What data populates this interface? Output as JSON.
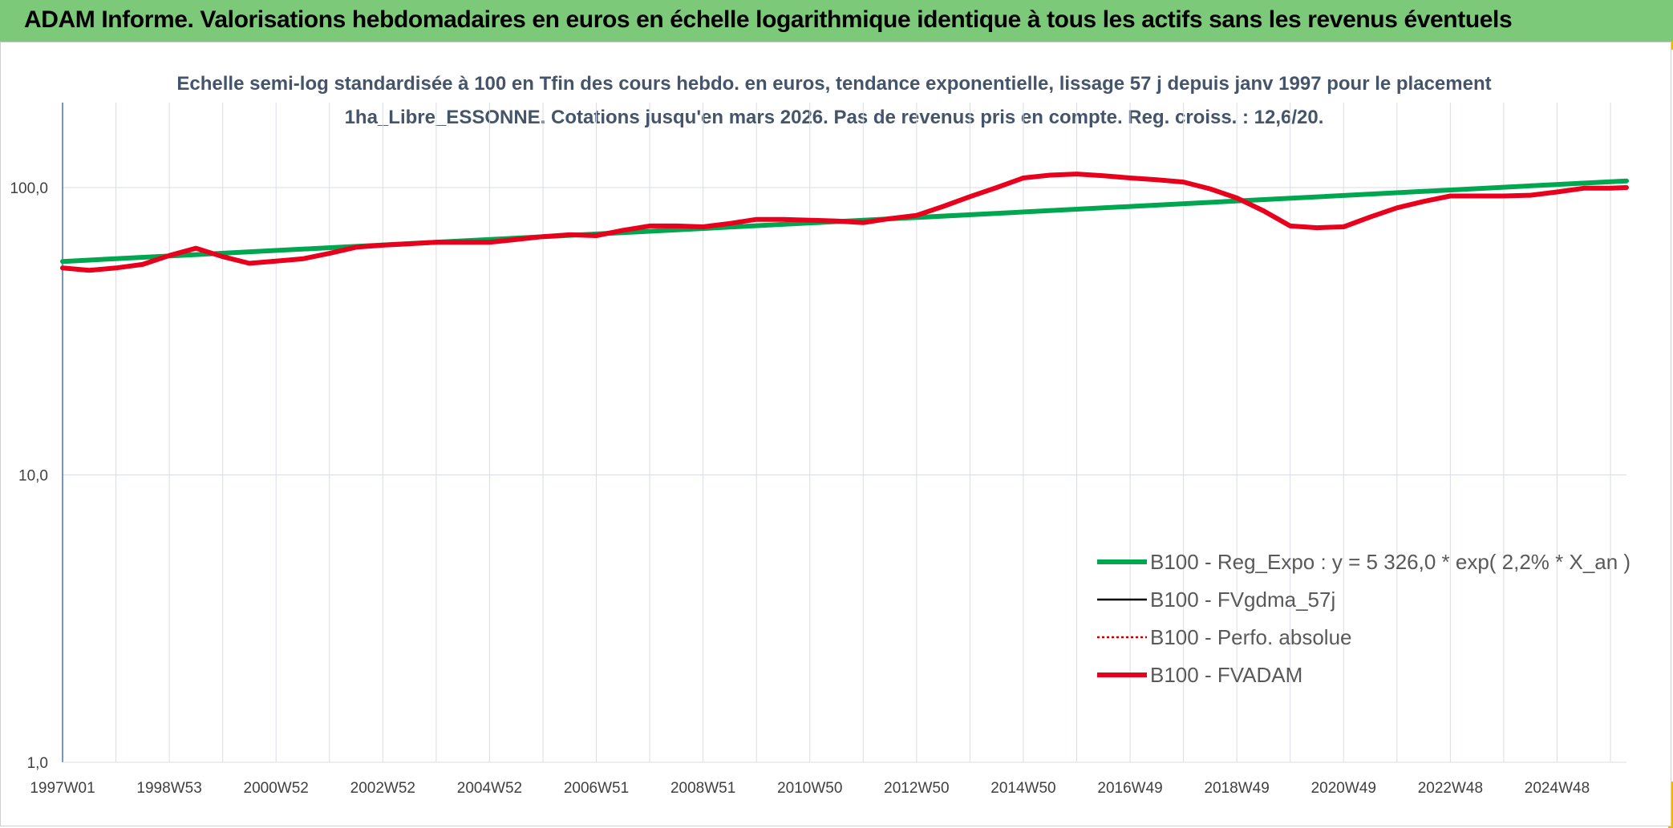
{
  "header": {
    "title": "ADAM Informe. Valorisations hebdomadaires en euros en échelle logarithmique identique à tous les actifs sans les revenus éventuels"
  },
  "colors": {
    "banner": "#7dc97a",
    "accent_tabs": "#f2b705",
    "trend_line": "#00a650",
    "fvadam_line": "#e8001c",
    "fvgdma_line": "#000000",
    "perf_line": "#c00000",
    "gridline": "#d9dde3",
    "y_axis": "#4472c4",
    "subtitle_text": "#44546a"
  },
  "chart_data": {
    "type": "line",
    "title": "Echelle semi-log standardisée à 100 en Tfin des cours hebdo. en euros, tendance exponentielle, lissage 57 j depuis janv 1997 pour le placement 1ha_Libre_ESSONNE. Cotations jusqu'en mars 2026. Pas de revenus pris en compte. Reg. croiss. : 12,6/20.",
    "y_scale": "log",
    "ylim": [
      1,
      100
    ],
    "xlim": [
      1997.0,
      2026.3
    ],
    "y_ticks": [
      {
        "value": 100,
        "label": "100,0"
      },
      {
        "value": 10,
        "label": "10,0"
      },
      {
        "value": 1,
        "label": "1,0"
      }
    ],
    "x_ticks": [
      {
        "value": 1997.0,
        "label": "1997W01"
      },
      {
        "value": 1999.0,
        "label": "1998W53"
      },
      {
        "value": 2001.0,
        "label": "2000W52"
      },
      {
        "value": 2003.0,
        "label": "2002W52"
      },
      {
        "value": 2005.0,
        "label": "2004W52"
      },
      {
        "value": 2007.0,
        "label": "2006W51"
      },
      {
        "value": 2009.0,
        "label": "2008W51"
      },
      {
        "value": 2011.0,
        "label": "2010W50"
      },
      {
        "value": 2013.0,
        "label": "2012W50"
      },
      {
        "value": 2015.0,
        "label": "2014W50"
      },
      {
        "value": 2017.0,
        "label": "2016W49"
      },
      {
        "value": 2019.0,
        "label": "2018W49"
      },
      {
        "value": 2021.0,
        "label": "2020W49"
      },
      {
        "value": 2023.0,
        "label": "2022W48"
      },
      {
        "value": 2025.0,
        "label": "2024W48"
      }
    ],
    "grid": true,
    "legend_position": "bottom-right",
    "series": [
      {
        "name": "B100 - Reg_Expo : y = 5 326,0 * exp( 2,2% *  X_an )",
        "style": "solid-thick",
        "color": "#00a650",
        "x": [
          1997.0,
          2026.3
        ],
        "y": [
          55.3,
          105.5
        ]
      },
      {
        "name": "B100 - FVgdma_57j",
        "style": "solid-thin",
        "color": "#000000",
        "x": [],
        "y": []
      },
      {
        "name": "B100 - Perfo. absolue",
        "style": "dotted",
        "color": "#c00000",
        "x": [],
        "y": []
      },
      {
        "name": "B100 - FVADAM",
        "style": "solid-thick",
        "color": "#e8001c",
        "x": [
          1997.0,
          1997.5,
          1998.0,
          1998.5,
          1999.0,
          1999.5,
          2000.0,
          2000.5,
          2001.0,
          2001.5,
          2002.0,
          2002.5,
          2003.0,
          2004.0,
          2005.0,
          2006.0,
          2006.5,
          2007.0,
          2007.5,
          2008.0,
          2008.5,
          2009.0,
          2009.5,
          2010.0,
          2010.5,
          2011.0,
          2011.5,
          2012.0,
          2012.5,
          2013.0,
          2013.5,
          2014.0,
          2014.5,
          2015.0,
          2015.5,
          2016.0,
          2016.5,
          2017.0,
          2017.5,
          2018.0,
          2018.5,
          2019.0,
          2019.5,
          2020.0,
          2020.5,
          2021.0,
          2021.5,
          2022.0,
          2022.5,
          2023.0,
          2023.5,
          2024.0,
          2024.5,
          2025.0,
          2025.5,
          2026.0,
          2026.3
        ],
        "y": [
          52.5,
          51.5,
          52.5,
          54.0,
          58.0,
          61.5,
          57.5,
          54.5,
          55.5,
          56.5,
          59.0,
          62.0,
          63.0,
          64.5,
          64.5,
          67.5,
          68.5,
          68.0,
          71.0,
          73.5,
          73.5,
          73.0,
          75.0,
          77.5,
          77.5,
          77.0,
          76.5,
          75.5,
          78.0,
          80.0,
          86.0,
          93.0,
          100.0,
          108.0,
          110.5,
          111.5,
          110.0,
          108.0,
          106.5,
          104.5,
          99.0,
          92.0,
          83.0,
          73.5,
          72.5,
          73.0,
          79.0,
          85.0,
          89.5,
          93.5,
          93.5,
          93.5,
          94.0,
          96.5,
          99.5,
          99.5,
          100.0
        ]
      }
    ]
  }
}
